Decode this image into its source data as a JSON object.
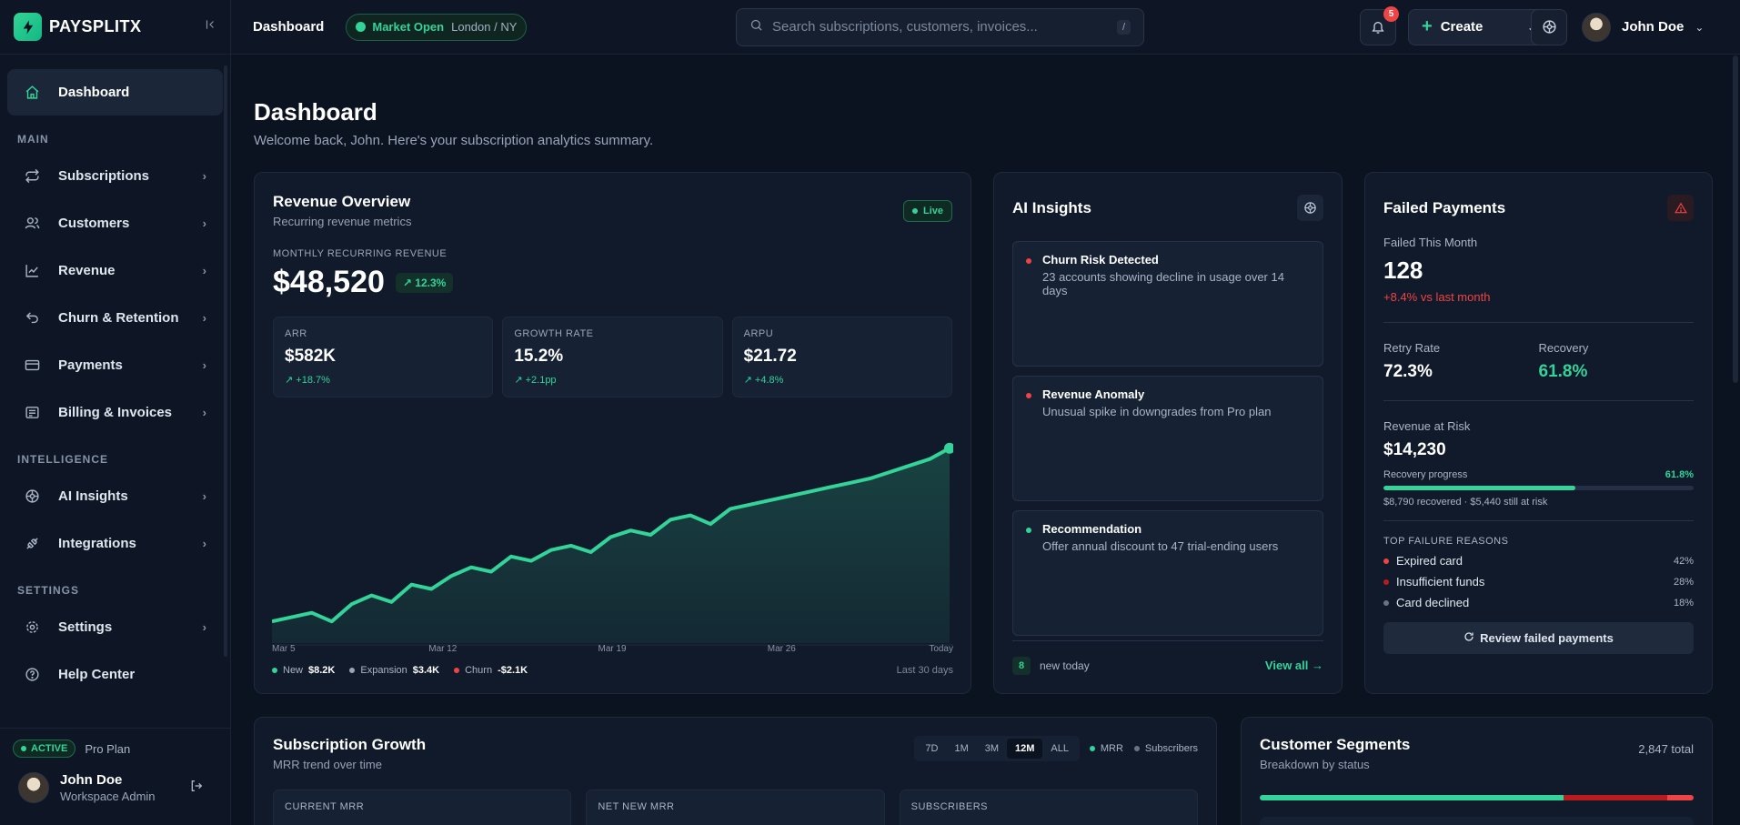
{
  "brand": {
    "name": "PAYSPLITX"
  },
  "sidebar": {
    "top_item": {
      "label": "Dashboard"
    },
    "sections": [
      {
        "label": "MAIN",
        "items": [
          {
            "label": "Subscriptions"
          },
          {
            "label": "Customers"
          },
          {
            "label": "Revenue"
          },
          {
            "label": "Churn & Retention"
          },
          {
            "label": "Payments"
          },
          {
            "label": "Billing & Invoices"
          }
        ]
      },
      {
        "label": "INTELLIGENCE",
        "items": [
          {
            "label": "AI Insights"
          },
          {
            "label": "Integrations"
          }
        ]
      },
      {
        "label": "SETTINGS",
        "items": [
          {
            "label": "Settings"
          },
          {
            "label": "Help Center"
          }
        ]
      }
    ],
    "plan_status": "ACTIVE",
    "plan_name": "Pro Plan",
    "user_name": "John Doe",
    "user_role": "Workspace Admin"
  },
  "topbar": {
    "title": "Dashboard",
    "market_status": "Market Open",
    "market_location": "London / NY",
    "search_placeholder": "Search subscriptions, customers, invoices...",
    "search_shortcut": "/",
    "notification_count": "5",
    "create_label": "Create",
    "user_name": "John Doe"
  },
  "page": {
    "title": "Dashboard",
    "subtitle": "Welcome back, John. Here's your subscription analytics summary."
  },
  "revenue": {
    "title": "Revenue Overview",
    "subtitle": "Recurring revenue metrics",
    "live": "Live",
    "mrr_label": "MONTHLY RECURRING REVENUE",
    "mrr_value": "$48,520",
    "mrr_delta": "↗ 12.3%",
    "stats": [
      {
        "label": "ARR",
        "value": "$582K",
        "delta": "↗ +18.7%"
      },
      {
        "label": "GROWTH RATE",
        "value": "15.2%",
        "delta": "↗ +2.1pp"
      },
      {
        "label": "ARPU",
        "value": "$21.72",
        "delta": "↗ +4.8%"
      }
    ],
    "legend": [
      {
        "label": "New",
        "value": "$8.2K",
        "color": "#34d399"
      },
      {
        "label": "Expansion",
        "value": "$3.4K",
        "color": "#9aa6b8"
      },
      {
        "label": "Churn",
        "value": "-$2.1K",
        "color": "#ef4444"
      }
    ],
    "range": "Last 30 days"
  },
  "chart_data": {
    "type": "area",
    "x_ticks": [
      "Mar 5",
      "Mar 12",
      "Mar 19",
      "Mar 26",
      "Today"
    ],
    "values": [
      0.1,
      0.12,
      0.14,
      0.1,
      0.18,
      0.22,
      0.19,
      0.27,
      0.25,
      0.31,
      0.35,
      0.33,
      0.4,
      0.38,
      0.43,
      0.45,
      0.42,
      0.49,
      0.52,
      0.5,
      0.57,
      0.59,
      0.55,
      0.62,
      0.64,
      0.66,
      0.68,
      0.7,
      0.72,
      0.74,
      0.76,
      0.79,
      0.82,
      0.85,
      0.9
    ],
    "ylim": [
      0,
      1
    ],
    "title": "",
    "xlabel": "",
    "ylabel": "",
    "grid": false,
    "color": "#34d399"
  },
  "ai": {
    "title": "AI Insights",
    "items": [
      {
        "title": "Churn Risk Detected",
        "text": "23 accounts showing decline in usage over 14 days",
        "color": "#ef4444"
      },
      {
        "title": "Revenue Anomaly",
        "text": "Unusual spike in downgrades from Pro plan",
        "color": "#ef4444"
      },
      {
        "title": "Recommendation",
        "text": "Offer annual discount to 47 trial-ending users",
        "color": "#34d399"
      }
    ],
    "new_count": "8",
    "new_label": "new today",
    "view_all": "View all →"
  },
  "failed": {
    "title": "Failed Payments",
    "failed_label": "Failed This Month",
    "failed_value": "128",
    "failed_delta": "+8.4% vs last month",
    "retry_label": "Retry Rate",
    "retry_value": "72.3%",
    "recovery_label": "Recovery",
    "recovery_value": "61.8%",
    "risk_label": "Revenue at Risk",
    "risk_value": "$14,230",
    "progress_label": "Recovery progress",
    "progress_pct": "61.8%",
    "progress_fraction": 0.618,
    "progress_note": "$8,790 recovered · $5,440 still at risk",
    "reasons_label": "TOP FAILURE REASONS",
    "reasons": [
      {
        "label": "Expired card",
        "pct": "42%",
        "color": "#ef4444"
      },
      {
        "label": "Insufficient funds",
        "pct": "28%",
        "color": "#b91c1c"
      },
      {
        "label": "Card declined",
        "pct": "18%",
        "color": "#6b7280"
      }
    ],
    "review_label": "Review failed payments"
  },
  "growth": {
    "title": "Subscription Growth",
    "subtitle": "MRR trend over time",
    "ranges": [
      "7D",
      "1M",
      "3M",
      "12M",
      "ALL"
    ],
    "active_range": "12M",
    "legend": [
      {
        "label": "MRR",
        "color": "#34d399"
      },
      {
        "label": "Subscribers",
        "color": "#6b7280"
      }
    ],
    "stats": [
      "CURRENT MRR",
      "NET NEW MRR",
      "SUBSCRIBERS"
    ]
  },
  "segments": {
    "title": "Customer Segments",
    "subtitle": "Breakdown by status",
    "total": "2,847 total",
    "bar_colors": [
      "#34d399",
      "#b91c1c",
      "#ef4444"
    ]
  }
}
